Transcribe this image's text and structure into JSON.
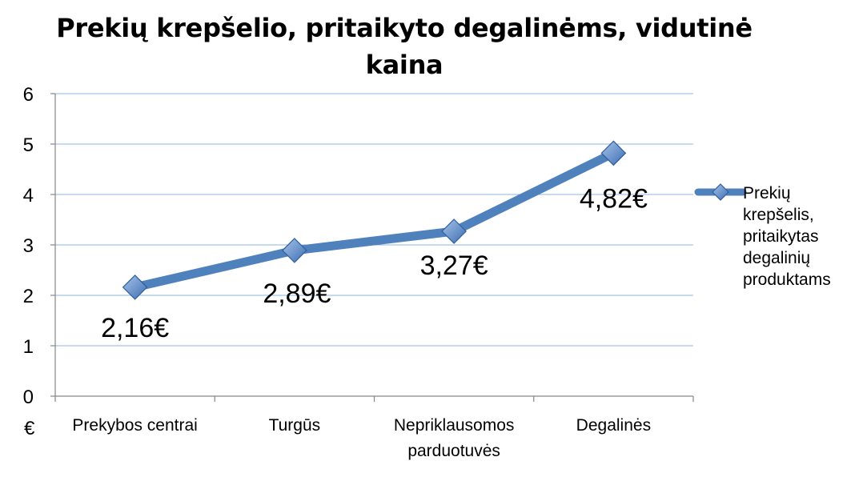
{
  "chart_data": {
    "type": "line",
    "title": "Prekių krepšelio, pritaikyto degalinėms, vidutinė kaina",
    "ylabel": "€",
    "xlabel": "",
    "ylim": [
      0,
      6
    ],
    "yticks": [
      0,
      1,
      2,
      3,
      4,
      5,
      6
    ],
    "grid": true,
    "legend": "right",
    "categories": [
      [
        "Prekybos centrai"
      ],
      [
        "Turgūs"
      ],
      [
        "Nepriklausomos",
        "parduotuvės"
      ],
      [
        "Degalinės"
      ]
    ],
    "series": [
      {
        "name": "Prekių krepšelis, pritaikytas degalinių produktams",
        "values": [
          2.16,
          2.89,
          3.27,
          4.82
        ],
        "data_labels": [
          "2,16€",
          "2,89€",
          "3,27€",
          "4,82€"
        ],
        "color": "#4f81bd"
      }
    ]
  }
}
